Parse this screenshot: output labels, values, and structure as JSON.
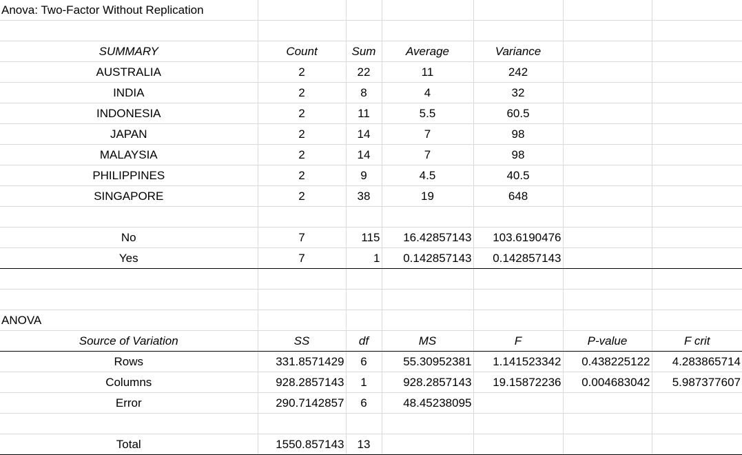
{
  "title": "Anova: Two-Factor Without Replication",
  "summary": {
    "headers": [
      "SUMMARY",
      "Count",
      "Sum",
      "Average",
      "Variance"
    ],
    "rows": [
      [
        "AUSTRALIA",
        "2",
        "22",
        "11",
        "242"
      ],
      [
        "INDIA",
        "2",
        "8",
        "4",
        "32"
      ],
      [
        "INDONESIA",
        "2",
        "11",
        "5.5",
        "60.5"
      ],
      [
        "JAPAN",
        "2",
        "14",
        "7",
        "98"
      ],
      [
        "MALAYSIA",
        "2",
        "14",
        "7",
        "98"
      ],
      [
        "PHILIPPINES",
        "2",
        "9",
        "4.5",
        "40.5"
      ],
      [
        "SINGAPORE",
        "2",
        "38",
        "19",
        "648"
      ]
    ],
    "columns": [
      [
        "No",
        "7",
        "115",
        "16.42857143",
        "103.6190476"
      ],
      [
        "Yes",
        "7",
        "1",
        "0.142857143",
        "0.142857143"
      ]
    ]
  },
  "anova": {
    "label": "ANOVA",
    "headers": [
      "Source of Variation",
      "SS",
      "df",
      "MS",
      "F",
      "P-value",
      "F crit"
    ],
    "rows": [
      [
        "Rows",
        "331.8571429",
        "6",
        "55.30952381",
        "1.141523342",
        "0.438225122",
        "4.283865714"
      ],
      [
        "Columns",
        "928.2857143",
        "1",
        "928.2857143",
        "19.15872236",
        "0.004683042",
        "5.987377607"
      ],
      [
        "Error",
        "290.7142857",
        "6",
        "48.45238095",
        "",
        "",
        ""
      ]
    ],
    "total": [
      "Total",
      "1550.857143",
      "13"
    ]
  }
}
